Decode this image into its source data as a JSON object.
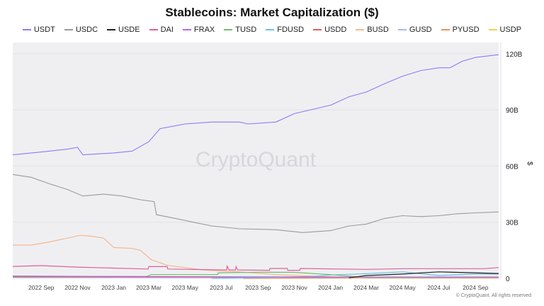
{
  "chart_data": {
    "type": "line",
    "title": "Stablecoins: Market Capitalization ($)",
    "ylabel": "$",
    "ylim": [
      0,
      126
    ],
    "y_ticks": [
      {
        "v": 0,
        "label": "0"
      },
      {
        "v": 30,
        "label": "30B"
      },
      {
        "v": 60,
        "label": "60B"
      },
      {
        "v": 90,
        "label": "90B"
      },
      {
        "v": 120,
        "label": "120B"
      }
    ],
    "xlim": [
      "2022-07-15",
      "2024-10-10"
    ],
    "x_ticks": [
      {
        "d": "2022-09-01",
        "label": "2022 Sep"
      },
      {
        "d": "2022-11-01",
        "label": "2022 Nov"
      },
      {
        "d": "2023-01-01",
        "label": "2023 Jan"
      },
      {
        "d": "2023-03-01",
        "label": "2023 Mar"
      },
      {
        "d": "2023-05-01",
        "label": "2023 May"
      },
      {
        "d": "2023-07-01",
        "label": "2023 Jul"
      },
      {
        "d": "2023-09-01",
        "label": "2023 Sep"
      },
      {
        "d": "2023-11-01",
        "label": "2023 Nov"
      },
      {
        "d": "2024-01-01",
        "label": "2024 Jan"
      },
      {
        "d": "2024-03-01",
        "label": "2024 Mar"
      },
      {
        "d": "2024-05-01",
        "label": "2024 May"
      },
      {
        "d": "2024-07-01",
        "label": "2024 Jul"
      },
      {
        "d": "2024-09-01",
        "label": "2024 Sep"
      }
    ],
    "grid": true,
    "legend_position": "top",
    "unit": "billions USD",
    "series": [
      {
        "name": "USDT",
        "color": "#8b7cf6",
        "points": [
          [
            "2022-07-15",
            66
          ],
          [
            "2022-09-01",
            67.5
          ],
          [
            "2022-10-15",
            69
          ],
          [
            "2022-11-01",
            70
          ],
          [
            "2022-11-10",
            66
          ],
          [
            "2023-01-01",
            67
          ],
          [
            "2023-02-01",
            68
          ],
          [
            "2023-03-01",
            73
          ],
          [
            "2023-03-20",
            80
          ],
          [
            "2023-05-01",
            82.5
          ],
          [
            "2023-06-15",
            83.5
          ],
          [
            "2023-08-01",
            83.5
          ],
          [
            "2023-08-15",
            82.5
          ],
          [
            "2023-10-01",
            83.5
          ],
          [
            "2023-11-01",
            88
          ],
          [
            "2024-01-01",
            92.5
          ],
          [
            "2024-02-01",
            97
          ],
          [
            "2024-03-01",
            99.5
          ],
          [
            "2024-04-01",
            104
          ],
          [
            "2024-05-01",
            108
          ],
          [
            "2024-06-01",
            111
          ],
          [
            "2024-07-01",
            112.5
          ],
          [
            "2024-07-20",
            112.5
          ],
          [
            "2024-08-10",
            116
          ],
          [
            "2024-09-01",
            118
          ],
          [
            "2024-10-10",
            119.5
          ]
        ]
      },
      {
        "name": "USDC",
        "color": "#9a9a9a",
        "points": [
          [
            "2022-07-15",
            55.5
          ],
          [
            "2022-08-15",
            54
          ],
          [
            "2022-09-15",
            50.5
          ],
          [
            "2022-10-15",
            47.5
          ],
          [
            "2022-11-10",
            44
          ],
          [
            "2022-12-15",
            45
          ],
          [
            "2023-01-15",
            44
          ],
          [
            "2023-02-15",
            42
          ],
          [
            "2023-03-10",
            41
          ],
          [
            "2023-03-14",
            34
          ],
          [
            "2023-04-15",
            32
          ],
          [
            "2023-05-15",
            30
          ],
          [
            "2023-06-15",
            28
          ],
          [
            "2023-08-01",
            26.5
          ],
          [
            "2023-10-01",
            26
          ],
          [
            "2023-11-15",
            24.5
          ],
          [
            "2024-01-01",
            25.5
          ],
          [
            "2024-02-01",
            28
          ],
          [
            "2024-03-01",
            29
          ],
          [
            "2024-04-01",
            32
          ],
          [
            "2024-05-01",
            33.5
          ],
          [
            "2024-06-01",
            33
          ],
          [
            "2024-07-01",
            33.5
          ],
          [
            "2024-08-01",
            34.5
          ],
          [
            "2024-09-01",
            35
          ],
          [
            "2024-10-10",
            35.5
          ]
        ]
      },
      {
        "name": "USDE",
        "color": "#222222",
        "points": [
          [
            "2024-02-01",
            0.3
          ],
          [
            "2024-03-01",
            1.5
          ],
          [
            "2024-05-01",
            2.3
          ],
          [
            "2024-07-01",
            3.5
          ],
          [
            "2024-08-01",
            3.2
          ],
          [
            "2024-10-10",
            2.6
          ]
        ]
      },
      {
        "name": "DAI",
        "color": "#e0609a",
        "points": [
          [
            "2022-07-15",
            6.4
          ],
          [
            "2022-09-01",
            6.8
          ],
          [
            "2022-11-01",
            6
          ],
          [
            "2023-01-01",
            5.5
          ],
          [
            "2023-02-28",
            5.0
          ],
          [
            "2023-03-01",
            6.3
          ],
          [
            "2023-04-01",
            6.3
          ],
          [
            "2023-04-02",
            5.0
          ],
          [
            "2023-07-10",
            4.5
          ],
          [
            "2023-07-11",
            6.5
          ],
          [
            "2023-07-14",
            4.5
          ],
          [
            "2023-07-25",
            4.5
          ],
          [
            "2023-07-26",
            6.3
          ],
          [
            "2023-07-29",
            4.5
          ],
          [
            "2023-09-20",
            4.3
          ],
          [
            "2023-09-21",
            5.3
          ],
          [
            "2023-10-20",
            5.3
          ],
          [
            "2023-10-21",
            4.3
          ],
          [
            "2023-11-10",
            4.3
          ],
          [
            "2023-11-11",
            5.3
          ],
          [
            "2024-03-01",
            4.8
          ],
          [
            "2024-05-01",
            5.2
          ],
          [
            "2024-09-15",
            5.2
          ],
          [
            "2024-10-10",
            5.8
          ]
        ]
      },
      {
        "name": "FRAX",
        "color": "#b566e8",
        "points": [
          [
            "2022-07-15",
            1.3
          ],
          [
            "2023-01-01",
            1.0
          ],
          [
            "2024-10-10",
            0.6
          ]
        ]
      },
      {
        "name": "TUSD",
        "color": "#6cc06c",
        "points": [
          [
            "2022-07-15",
            1.0
          ],
          [
            "2023-02-25",
            1.0
          ],
          [
            "2023-03-05",
            2.0
          ],
          [
            "2023-06-25",
            2.0
          ],
          [
            "2023-06-26",
            3.0
          ],
          [
            "2023-09-01",
            3.3
          ],
          [
            "2023-11-01",
            3.2
          ],
          [
            "2024-01-01",
            2.0
          ],
          [
            "2024-03-01",
            0.5
          ],
          [
            "2024-10-10",
            0.5
          ]
        ]
      },
      {
        "name": "FDUSD",
        "color": "#68c3e8",
        "points": [
          [
            "2023-06-15",
            0
          ],
          [
            "2023-12-01",
            1
          ],
          [
            "2024-01-01",
            1.8
          ],
          [
            "2024-03-01",
            2.5
          ],
          [
            "2024-05-01",
            3.5
          ],
          [
            "2024-07-01",
            1.5
          ],
          [
            "2024-09-01",
            2.3
          ],
          [
            "2024-10-10",
            2.3
          ]
        ]
      },
      {
        "name": "USDD",
        "color": "#e06060",
        "points": [
          [
            "2022-07-15",
            0.7
          ],
          [
            "2024-10-10",
            0.7
          ]
        ]
      },
      {
        "name": "BUSD",
        "color": "#f5b98c",
        "points": [
          [
            "2022-07-15",
            17.8
          ],
          [
            "2022-08-15",
            17.8
          ],
          [
            "2022-09-15",
            19.5
          ],
          [
            "2022-10-15",
            21.5
          ],
          [
            "2022-11-05",
            23
          ],
          [
            "2022-11-25",
            22.5
          ],
          [
            "2022-12-15",
            21.5
          ],
          [
            "2023-01-01",
            16.5
          ],
          [
            "2023-02-01",
            16
          ],
          [
            "2023-02-15",
            15
          ],
          [
            "2023-03-05",
            10
          ],
          [
            "2023-04-01",
            7
          ],
          [
            "2023-06-01",
            4.5
          ],
          [
            "2023-08-01",
            3.5
          ],
          [
            "2023-10-01",
            2
          ],
          [
            "2024-01-01",
            0.8
          ],
          [
            "2024-03-01",
            0.1
          ],
          [
            "2024-10-10",
            0.1
          ]
        ]
      },
      {
        "name": "GUSD",
        "color": "#a8b8f0",
        "points": [
          [
            "2022-07-15",
            0.6
          ],
          [
            "2024-10-10",
            0.5
          ]
        ]
      },
      {
        "name": "PYUSD",
        "color": "#f09050",
        "points": [
          [
            "2023-08-07",
            0
          ],
          [
            "2024-06-01",
            0.4
          ],
          [
            "2024-10-10",
            0.6
          ]
        ]
      },
      {
        "name": "USDP",
        "color": "#f0d050",
        "points": [
          [
            "2022-07-15",
            0.9
          ],
          [
            "2023-06-01",
            0.5
          ],
          [
            "2024-10-10",
            0.2
          ]
        ]
      }
    ]
  },
  "watermark": "CryptoQuant",
  "footer": "© CryptoQuant. All rights reserved"
}
